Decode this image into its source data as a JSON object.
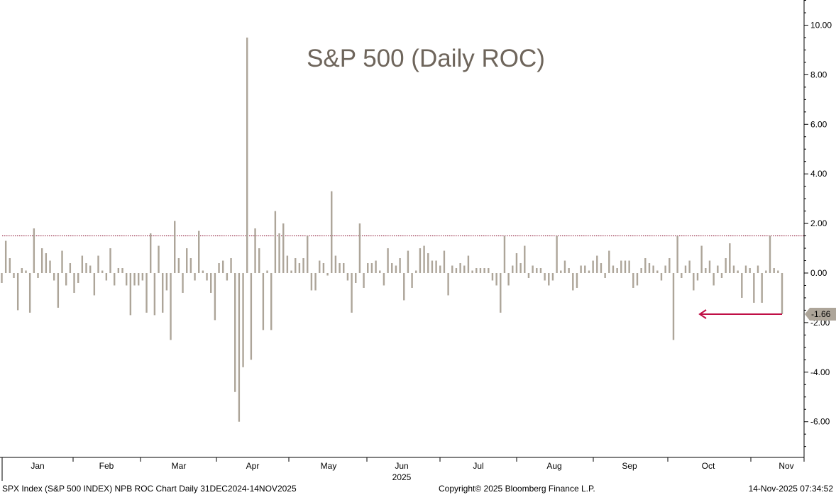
{
  "chart_data": {
    "type": "bar",
    "title": "S&P 500 (Daily ROC)",
    "x_labels": [
      "Jan",
      "Feb",
      "Mar",
      "Apr",
      "May",
      "Jun",
      "Jul",
      "Aug",
      "Sep",
      "Oct",
      "Nov"
    ],
    "year_label": "2025",
    "y_ticks": [
      "10.00",
      "8.00",
      "6.00",
      "4.00",
      "2.00",
      "0.00",
      "-2.00",
      "-4.00",
      "-6.00"
    ],
    "ylim": [
      -7.4,
      11.0
    ],
    "reference_line": 1.5,
    "last_value_label": "-1.66",
    "series": [
      {
        "values": [
          -0.4,
          1.3,
          0.6,
          -0.2,
          -1.5,
          0.2,
          0.1,
          -1.6,
          1.8,
          -0.2,
          1.0,
          0.8,
          0.5,
          -0.3,
          -1.4,
          0.9,
          -0.5,
          0.4,
          -0.8,
          -0.4,
          0.7,
          0.4,
          0.3,
          -0.9,
          0.7,
          0.1,
          -0.3,
          1.0,
          -0.5,
          0.2,
          0.2,
          -0.5,
          -1.7,
          -0.5,
          -0.5,
          -0.3,
          -1.6,
          1.6,
          -1.7,
          1.1,
          -1.6,
          -0.7,
          -2.7,
          2.1,
          0.6,
          -0.8,
          1.0,
          0.6,
          -0.3,
          1.7,
          0.1,
          -0.3,
          -0.8,
          -1.9,
          0.4,
          0.5,
          -0.3,
          0.6,
          -4.8,
          -6.0,
          -3.8,
          9.5,
          -3.5,
          1.8,
          1.0,
          -2.3,
          0.1,
          -2.3,
          2.5,
          1.6,
          2.0,
          0.7,
          0.1,
          0.6,
          0.4,
          0.6,
          1.5,
          -0.7,
          -0.7,
          0.5,
          0.4,
          -0.1,
          3.3,
          0.7,
          0.4,
          0.4,
          -0.3,
          -1.6,
          -0.4,
          2.0,
          -0.6,
          0.4,
          0.4,
          0.5,
          0.1,
          -0.5,
          1.0,
          0.4,
          0.3,
          0.6,
          -1.1,
          0.9,
          -0.6,
          0.1,
          1.0,
          1.1,
          0.8,
          0.5,
          0.5,
          0.3,
          0.9,
          -0.9,
          0.3,
          0.2,
          0.4,
          0.3,
          0.7,
          0.1,
          0.2,
          0.2,
          0.2,
          0.2,
          -0.3,
          -0.5,
          -1.6,
          1.5,
          -0.5,
          0.3,
          0.8,
          0.4,
          1.1,
          -0.2,
          0.3,
          0.2,
          0.2,
          -0.3,
          -0.5,
          -0.3,
          1.5,
          0.1,
          0.5,
          0.2,
          -0.7,
          -0.6,
          0.3,
          0.3,
          0.1,
          0.5,
          0.7,
          0.4,
          -0.2,
          0.9,
          0.3,
          0.2,
          0.5,
          0.5,
          0.5,
          -0.6,
          -0.5,
          0.2,
          0.6,
          0.4,
          0.3,
          0.1,
          -0.3,
          0.3,
          0.6,
          -2.7,
          1.5,
          -0.2,
          0.3,
          0.5,
          -0.7,
          -0.3,
          1.1,
          0.2,
          0.5,
          -0.5,
          0.3,
          -0.2,
          0.6,
          1.2,
          0.3,
          0.1,
          -1.0,
          0.3,
          0.2,
          -1.2,
          0.3,
          -1.2,
          0.1,
          1.5,
          0.2,
          0.1,
          -1.66
        ]
      }
    ]
  },
  "footer": {
    "left": "SPX Index (S&P 500 INDEX) NPB ROC Chart Daily 31DEC2024-14NOV2025",
    "center": "Copyright© 2025 Bloomberg Finance L.P.",
    "right": "14-Nov-2025 07:34:52"
  },
  "colors": {
    "bar": "#ada599",
    "title": "#6e655b",
    "reference_line": "#8a1030",
    "arrow": "#c00f46",
    "label_box": "#ada599"
  }
}
